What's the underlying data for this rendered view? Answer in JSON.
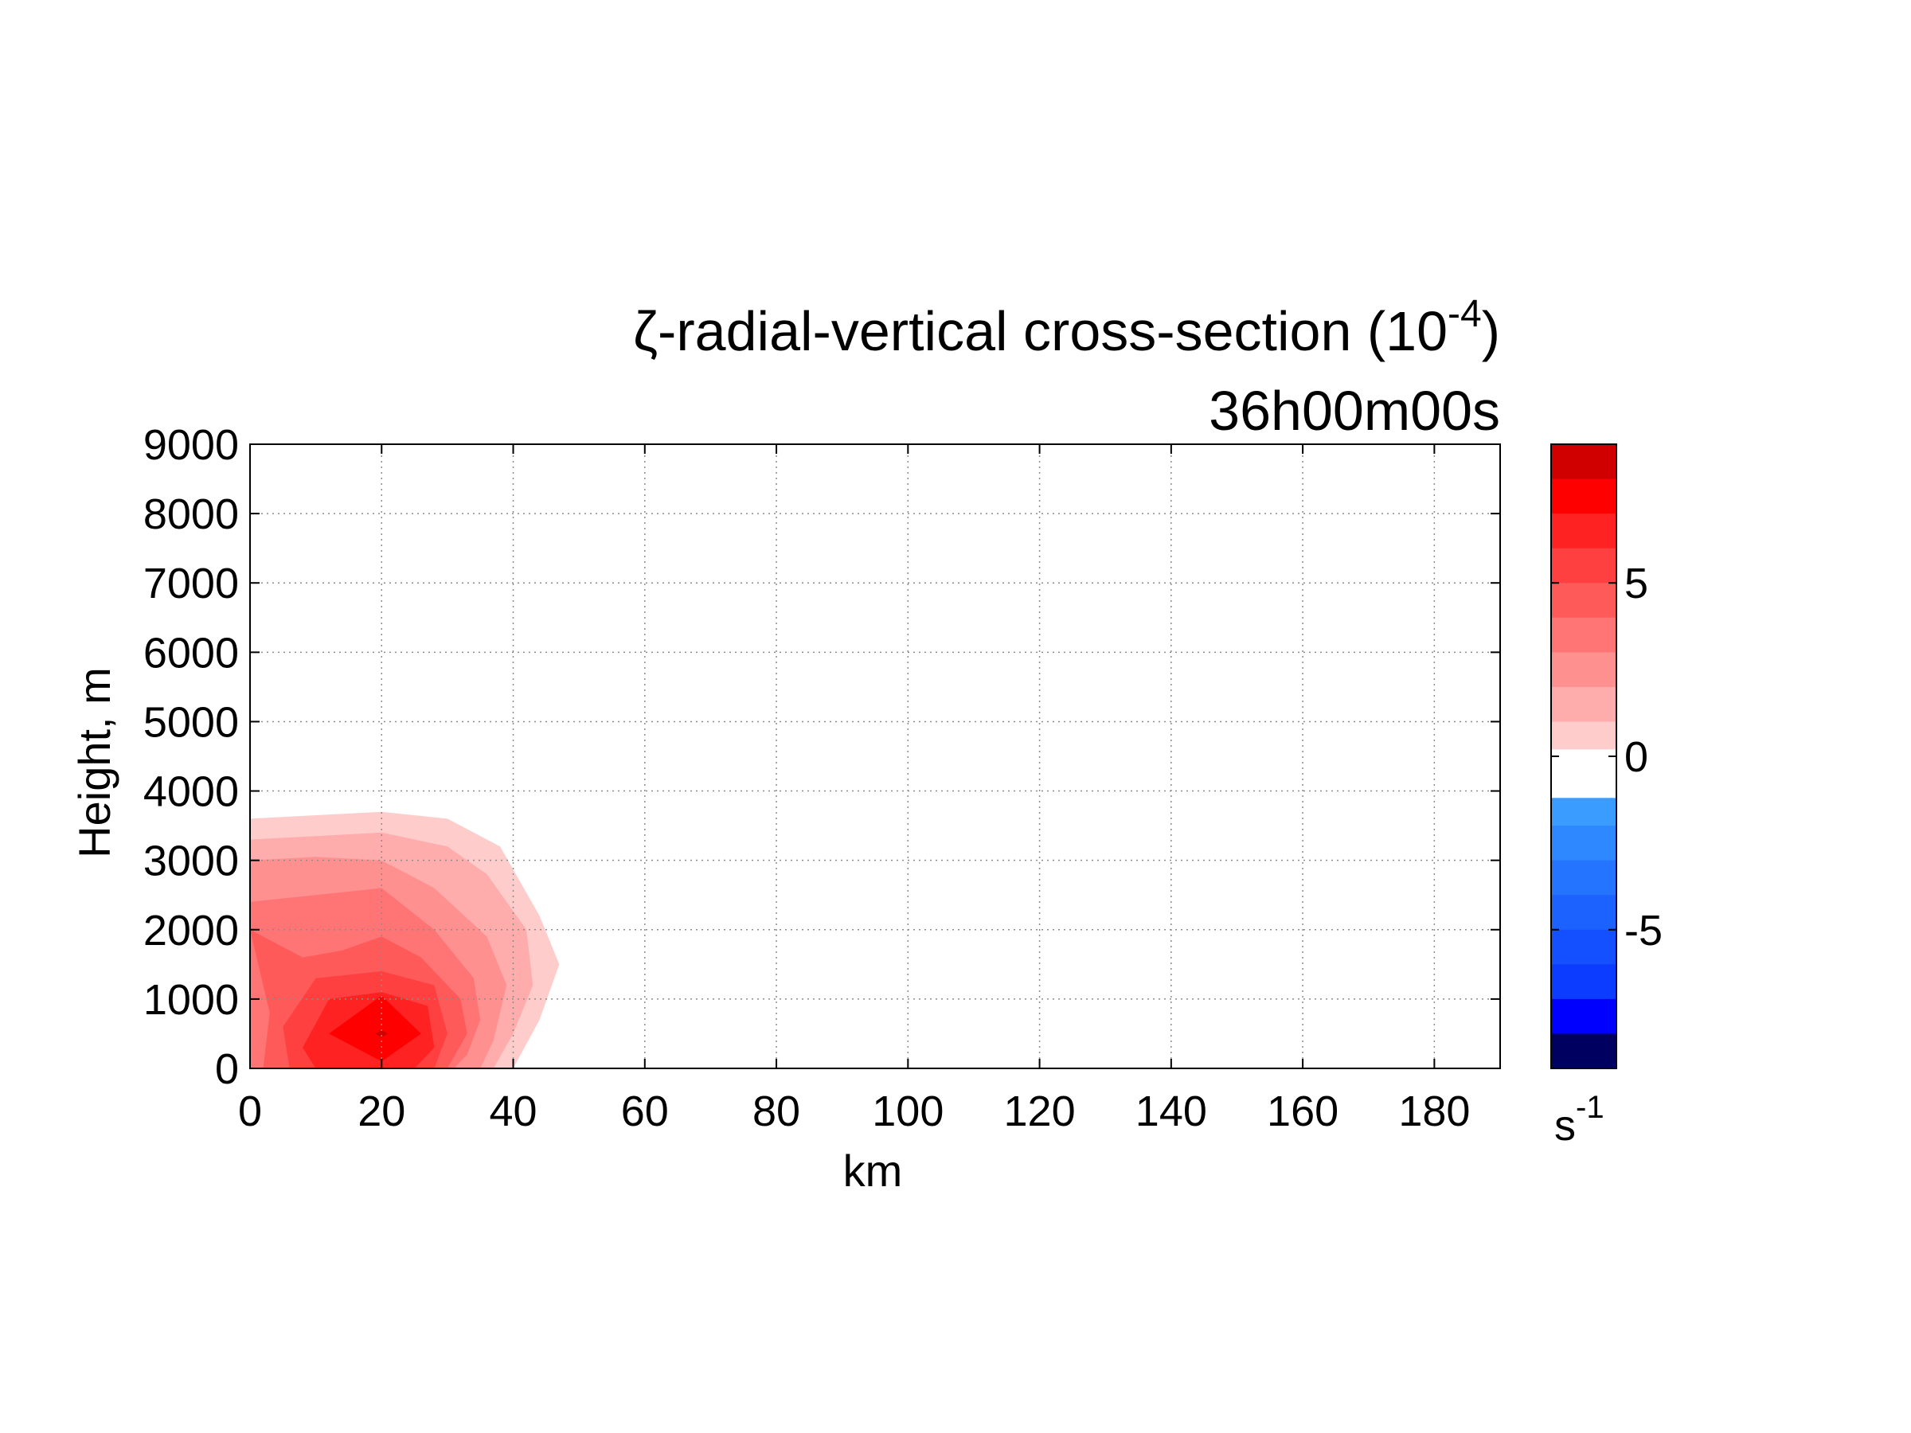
{
  "chart_data": {
    "type": "contourf",
    "title": {
      "line1_prefix": "ζ-radial-vertical cross-section (10",
      "line1_exponent": "-4",
      "line1_suffix": ")",
      "line2": "36h00m00s"
    },
    "xlabel": "km",
    "ylabel": "Height, m",
    "xlim": [
      0,
      190
    ],
    "ylim": [
      0,
      9000
    ],
    "xticks": [
      0,
      20,
      40,
      60,
      80,
      100,
      120,
      140,
      160,
      180
    ],
    "yticks": [
      0,
      1000,
      2000,
      3000,
      4000,
      5000,
      6000,
      7000,
      8000,
      9000
    ],
    "grid": true,
    "colorbar": {
      "ticks": [
        5,
        0,
        -5
      ],
      "label_base": "s",
      "label_exponent": "-1",
      "range": [
        -9,
        9
      ],
      "levels": [
        {
          "from": 8,
          "to": 9,
          "color": "#d00000"
        },
        {
          "from": 7,
          "to": 8,
          "color": "#ff0000"
        },
        {
          "from": 6,
          "to": 7,
          "color": "#ff2222"
        },
        {
          "from": 5,
          "to": 6,
          "color": "#ff4040"
        },
        {
          "from": 4,
          "to": 5,
          "color": "#ff5a5a"
        },
        {
          "from": 3,
          "to": 4,
          "color": "#ff7474"
        },
        {
          "from": 2,
          "to": 3,
          "color": "#ff9090"
        },
        {
          "from": 1,
          "to": 2,
          "color": "#ffacac"
        },
        {
          "from": 0.2,
          "to": 1,
          "color": "#ffcccc"
        },
        {
          "from": -1.2,
          "to": 0.2,
          "color": "#ffffff"
        },
        {
          "from": -2,
          "to": -1.2,
          "color": "#3a9cff"
        },
        {
          "from": -3,
          "to": -2,
          "color": "#2e88ff"
        },
        {
          "from": -4,
          "to": -3,
          "color": "#2474ff"
        },
        {
          "from": -5,
          "to": -4,
          "color": "#1c62ff"
        },
        {
          "from": -6,
          "to": -5,
          "color": "#1450ff"
        },
        {
          "from": -7,
          "to": -6,
          "color": "#0c3cff"
        },
        {
          "from": -8,
          "to": -7,
          "color": "#0000ff"
        },
        {
          "from": -9,
          "to": -8,
          "color": "#000060"
        }
      ]
    },
    "contours": [
      {
        "level": 1,
        "color": "#ffcccc",
        "points": [
          [
            0,
            3600
          ],
          [
            10,
            3650
          ],
          [
            20,
            3700
          ],
          [
            30,
            3600
          ],
          [
            38,
            3200
          ],
          [
            44,
            2200
          ],
          [
            47,
            1500
          ],
          [
            44,
            700
          ],
          [
            40,
            0
          ],
          [
            0,
            0
          ]
        ]
      },
      {
        "level": 2,
        "color": "#ffacac",
        "points": [
          [
            0,
            3300
          ],
          [
            10,
            3350
          ],
          [
            20,
            3400
          ],
          [
            30,
            3200
          ],
          [
            36,
            2800
          ],
          [
            42,
            2000
          ],
          [
            43,
            1200
          ],
          [
            40,
            500
          ],
          [
            37,
            0
          ],
          [
            0,
            0
          ]
        ]
      },
      {
        "level": 3,
        "color": "#ff9090",
        "points": [
          [
            0,
            3000
          ],
          [
            10,
            3050
          ],
          [
            20,
            3000
          ],
          [
            28,
            2600
          ],
          [
            36,
            1900
          ],
          [
            39,
            1200
          ],
          [
            37,
            400
          ],
          [
            35,
            0
          ],
          [
            0,
            0
          ]
        ]
      },
      {
        "level": 4,
        "color": "#ff7474",
        "points": [
          [
            0,
            2400
          ],
          [
            10,
            2500
          ],
          [
            20,
            2600
          ],
          [
            28,
            2000
          ],
          [
            34,
            1300
          ],
          [
            35,
            700
          ],
          [
            33,
            200
          ],
          [
            31,
            0
          ],
          [
            0,
            0
          ]
        ]
      },
      {
        "level": 5,
        "color": "#ff5a5a",
        "points": [
          [
            0,
            2000
          ],
          [
            8,
            1600
          ],
          [
            14,
            1700
          ],
          [
            20,
            1900
          ],
          [
            26,
            1600
          ],
          [
            32,
            1000
          ],
          [
            33,
            500
          ],
          [
            30,
            0
          ],
          [
            2,
            0
          ],
          [
            3,
            800
          ]
        ]
      },
      {
        "level": 6,
        "color": "#ff4040",
        "points": [
          [
            5,
            600
          ],
          [
            10,
            1300
          ],
          [
            20,
            1400
          ],
          [
            28,
            1200
          ],
          [
            30,
            500
          ],
          [
            28,
            0
          ],
          [
            6,
            0
          ]
        ]
      },
      {
        "level": 7,
        "color": "#ff2222",
        "points": [
          [
            8,
            300
          ],
          [
            12,
            1000
          ],
          [
            20,
            1100
          ],
          [
            27,
            900
          ],
          [
            28,
            300
          ],
          [
            25,
            0
          ],
          [
            10,
            0
          ]
        ]
      },
      {
        "level": 8,
        "color": "#ff0000",
        "points": [
          [
            12,
            500
          ],
          [
            20,
            1050
          ],
          [
            26,
            500
          ],
          [
            20,
            100
          ]
        ]
      },
      {
        "level": 9,
        "color": "#d00000",
        "points": [
          [
            19,
            500
          ],
          [
            20,
            550
          ],
          [
            21,
            500
          ],
          [
            20,
            450
          ]
        ]
      }
    ]
  }
}
